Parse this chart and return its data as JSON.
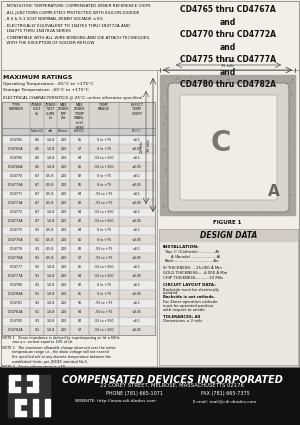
{
  "title_right": "CD4765 thru CD4767A\nand\nCD4770 thru CD4772A\nand\nCD4775 thru CD4777A\nand\nCD4780 thru CD4782A",
  "bullets": [
    "- MONOLITHIC TEMPERATURE COMPENSATED ZENER REFERENCE CHIPS",
    "- ALL JUNCTIONS COMPLETELY PROTECTED WITH SILICON DIOXIDE",
    "- 8.5 & 9.1 VOLT NOMINAL ZENER VOLTAGE ±5%",
    "- ELECTRICALLY EQUIVALENT TO 1N4765 THRU 1N4772A AND\n  1N4775 THRU 1N4782A SERIES",
    "- COMPATIBLE WITH ALL WIRE BONDING AND DIE ATTACH TECHNIQUES,\n  WITH THE EXCEPTION OF SOLDER REFLOW"
  ],
  "max_ratings_title": "MAXIMUM RATINGS",
  "max_ratings": [
    "Operating Temperature: -65°C to +175°C",
    "Storage Temperature: -65°C to +175°C"
  ],
  "elec_char_title": "ELECTRICAL CHARACTERISTICS @ 25°C, unless otherwise specified.",
  "table_headers": [
    "TYPE\nNUMBER",
    "ZENER\nVOLTAGE\nVz(1)(2)",
    "ZENER\nTEST\nCURRENT\nIzt",
    "MAXIMUM\nZENER\nIMPEDANCE\nZzt",
    "MAXIMUM\nZENER\nTEMPERATURE\nSTABILITY\n(mV)\n@\nREFERENCE",
    "TEMPERATURE\nRANGE",
    "EXPECTED\nTEMPERATURE\nCOEFFICIENT"
  ],
  "table_units": [
    "",
    "(Volts) (2)",
    "mA",
    "(Ohms)",
    "(mV per) (2)",
    "",
    "(% / °C)"
  ],
  "table_data": [
    [
      "CD4765",
      "8.5",
      "1.0-8",
      "200",
      "85",
      "0 to +75",
      "±0.1"
    ],
    [
      "CD4765A",
      "8.5",
      "1.0-8",
      "200",
      "57",
      "0 to +75",
      "±0.05"
    ],
    [
      "CD4766",
      "8.5",
      "1.0-8",
      "200",
      "64",
      "-55 to +150",
      "±0.1"
    ],
    [
      "CD4766A",
      "8.5",
      "1.0-8",
      "200",
      "85",
      "-55 to +150",
      "±0.05"
    ],
    [
      "CD4770",
      "8.7",
      "0.5-8",
      "200",
      "82",
      "0 to +75",
      "±0.1"
    ],
    [
      "CD4770A",
      "8.7",
      "0.5-8",
      "200",
      "55",
      "0 to +75",
      "±0.05"
    ],
    [
      "CD4771",
      "8.7",
      "0.5-8",
      "200",
      "64",
      "-55 to +75",
      "±0.1"
    ],
    [
      "CD4771A",
      "8.7",
      "0.5-8",
      "200",
      "82",
      "-55 to +75",
      "±0.05"
    ],
    [
      "CD4772",
      "8.7",
      "1.0-8",
      "200",
      "64",
      "-55 to +150",
      "±0.1"
    ],
    [
      "CD4772A",
      "8.7",
      "1.0-8",
      "200",
      "82",
      "-55 to +150",
      "±0.05"
    ],
    [
      "CD4775",
      "9.1",
      "0.5-8",
      "200",
      "64",
      "0 to +75",
      "±0.1"
    ],
    [
      "CD4775A",
      "9.1",
      "0.5-8",
      "200",
      "85",
      "0 to +75",
      "±0.05"
    ],
    [
      "CD4776",
      "9.1",
      "0.5-8",
      "200",
      "82",
      "-55 to +75",
      "±0.1"
    ],
    [
      "CD4776A",
      "9.1",
      "0.5-8",
      "200",
      "57",
      "-55 to +75",
      "±0.05"
    ],
    [
      "CD4777",
      "9.1",
      "1.0-8",
      "200",
      "85",
      "-55 to +150",
      "±0.1"
    ],
    [
      "CD4777A",
      "9.1",
      "1.0-8",
      "200",
      "64",
      "-55 to +150",
      "±0.05"
    ],
    [
      "CD4780",
      "9.1",
      "1.0-8",
      "200",
      "82",
      "0 to +75",
      "±0.1"
    ],
    [
      "CD4780A",
      "9.1",
      "1.0-8",
      "200",
      "85",
      "0 to +75",
      "±0.05"
    ],
    [
      "CD4781",
      "9.1",
      "1.0-8",
      "200",
      "55",
      "-55 to +75",
      "±0.1"
    ],
    [
      "CD4781A",
      "9.1",
      "1.0-8",
      "200",
      "64",
      "-55 to +75",
      "±0.05"
    ],
    [
      "CD4782",
      "9.1",
      "1.0-8",
      "200",
      "82",
      "-55 to +150",
      "±0.1"
    ],
    [
      "CD4782A",
      "9.1",
      "1.0-8",
      "200",
      "57",
      "-55 to +150",
      "±0.05"
    ]
  ],
  "notes": [
    "NOTE 1   Zener impedance is derived by superimposing on Izt a 60Hz\n         sine a.c. current equal to 10% of Izt.",
    "NOTE 2   The maximum allowable change observed over the entire\n         temperature range i.e., the diode voltage will not exceed\n         the specified mV at any discrete temperature between the\n         established limits, per JS/DEC standard No.5.",
    "NOTE 3   Zener voltage range is ±5%."
  ],
  "figure_label": "FIGURE 1",
  "design_data_title": "DESIGN DATA",
  "company": "COMPENSATED DEVICES INCORPORATED",
  "address": "22 COREY STREET, MELROSE, MASSACHUSETTS 02176",
  "phone_fax": "PHONE (781) 665-1071          FAX (781) 665-7375",
  "website_email": "WEBSITE: http://www.cdi-diodes.com     E-mail: mail@cdi-diodes.com",
  "bg_color": "#f2efea",
  "table_bg": "#ebebeb",
  "header_bg": "#d8d5d0",
  "border_color": "#777770",
  "text_color": "#111111",
  "footer_bg": "#111111",
  "footer_text": "#ffffff",
  "chip_outer_color": "#b0aca6",
  "chip_speckle_color": "#9a9690",
  "chip_face_color": "#e8e5e0",
  "chip_inner_color": "#f0ede8"
}
